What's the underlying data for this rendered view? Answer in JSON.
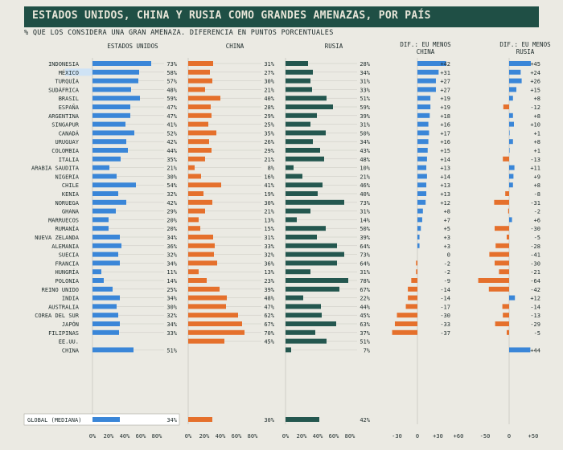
{
  "title": "ESTADOS UNIDOS, CHINA Y RUSIA COMO GRANDES AMENAZAS, POR PAÍS",
  "subtitle": "% QUE LOS CONSIDERA UNA GRAN AMENAZA. DIFERENCIA EN PUNTOS PORCENTUALES",
  "colors": {
    "us": "#3a86d8",
    "china": "#e5702c",
    "russia": "#24574f",
    "diff_neg": "#e5702c",
    "background": "#ebeae3",
    "title_bg": "#1f4f45",
    "highlight": "#cfe3f5"
  },
  "chart_data": {
    "type": "bar",
    "panels": [
      {
        "key": "us",
        "title": "ESTADOS UNIDOS",
        "xlim": [
          0,
          100
        ],
        "ticks": [
          "0%",
          "20%",
          "40%",
          "60%",
          "80%"
        ]
      },
      {
        "key": "china",
        "title": "CHINA",
        "xlim": [
          0,
          100
        ],
        "ticks": [
          "0%",
          "20%",
          "40%",
          "60%",
          "80%"
        ]
      },
      {
        "key": "russia",
        "title": "RUSIA",
        "xlim": [
          0,
          100
        ],
        "ticks": [
          "0%",
          "20%",
          "40%",
          "60%",
          "80%"
        ]
      },
      {
        "key": "diff_china",
        "title": "DIF.: EU MENOS CHINA",
        "xlim": [
          -50,
          70
        ],
        "ticks": [
          "-30",
          "0",
          "+30",
          "+60"
        ]
      },
      {
        "key": "diff_russia",
        "title": "DIF.: EU MENOS RUSIA",
        "xlim": [
          -80,
          70
        ],
        "ticks": [
          "-50",
          "0",
          "+50"
        ]
      }
    ],
    "highlighted_country": "MÉXICO",
    "rows": [
      {
        "country": "INDONESIA",
        "us": 73,
        "china": 31,
        "russia": 28,
        "diff_china": "+42",
        "diff_russia": "+45"
      },
      {
        "country": "MÉXICO",
        "us": 58,
        "china": 27,
        "russia": 34,
        "diff_china": "+31",
        "diff_russia": "+24"
      },
      {
        "country": "TURQUÍA",
        "us": 57,
        "china": 30,
        "russia": 31,
        "diff_china": "+27",
        "diff_russia": "+26"
      },
      {
        "country": "SUDÁFRICA",
        "us": 48,
        "china": 21,
        "russia": 33,
        "diff_china": "+27",
        "diff_russia": "+15"
      },
      {
        "country": "BRASIL",
        "us": 59,
        "china": 40,
        "russia": 51,
        "diff_china": "+19",
        "diff_russia": "+8"
      },
      {
        "country": "ESPAÑA",
        "us": 47,
        "china": 28,
        "russia": 59,
        "diff_china": "+19",
        "diff_russia": "-12"
      },
      {
        "country": "ARGENTINA",
        "us": 47,
        "china": 29,
        "russia": 39,
        "diff_china": "+18",
        "diff_russia": "+8"
      },
      {
        "country": "SINGAPUR",
        "us": 41,
        "china": 25,
        "russia": 31,
        "diff_china": "+16",
        "diff_russia": "+10"
      },
      {
        "country": "CANADÁ",
        "us": 52,
        "china": 35,
        "russia": 50,
        "diff_china": "+17",
        "diff_russia": "+1"
      },
      {
        "country": "URUGUAY",
        "us": 42,
        "china": 26,
        "russia": 34,
        "diff_china": "+16",
        "diff_russia": "+8"
      },
      {
        "country": "COLOMBIA",
        "us": 44,
        "china": 29,
        "russia": 43,
        "diff_china": "+15",
        "diff_russia": "+1"
      },
      {
        "country": "ITALIA",
        "us": 35,
        "china": 21,
        "russia": 48,
        "diff_china": "+14",
        "diff_russia": "-13"
      },
      {
        "country": "ARABIA SAUDITA",
        "us": 21,
        "china": 8,
        "russia": 10,
        "diff_china": "+13",
        "diff_russia": "+11"
      },
      {
        "country": "NIGERIA",
        "us": 30,
        "china": 16,
        "russia": 21,
        "diff_china": "+14",
        "diff_russia": "+9"
      },
      {
        "country": "CHILE",
        "us": 54,
        "china": 41,
        "russia": 46,
        "diff_china": "+13",
        "diff_russia": "+8"
      },
      {
        "country": "KENIA",
        "us": 32,
        "china": 19,
        "russia": 40,
        "diff_china": "+13",
        "diff_russia": "-8"
      },
      {
        "country": "NORUEGA",
        "us": 42,
        "china": 30,
        "russia": 73,
        "diff_china": "+12",
        "diff_russia": "-31"
      },
      {
        "country": "GHANA",
        "us": 29,
        "china": 21,
        "russia": 31,
        "diff_china": "+8",
        "diff_russia": "-2"
      },
      {
        "country": "MARRUECOS",
        "us": 20,
        "china": 13,
        "russia": 14,
        "diff_china": "+7",
        "diff_russia": "+6"
      },
      {
        "country": "RUMANÍA",
        "us": 20,
        "china": 15,
        "russia": 50,
        "diff_china": "+5",
        "diff_russia": "-30"
      },
      {
        "country": "NUEVA ZELANDA",
        "us": 34,
        "china": 31,
        "russia": 39,
        "diff_china": "+3",
        "diff_russia": "-5"
      },
      {
        "country": "ALEMANIA",
        "us": 36,
        "china": 33,
        "russia": 64,
        "diff_china": "+3",
        "diff_russia": "-28"
      },
      {
        "country": "SUECIA",
        "us": 32,
        "china": 32,
        "russia": 73,
        "diff_china": "0",
        "diff_russia": "-41"
      },
      {
        "country": "FRANCIA",
        "us": 34,
        "china": 36,
        "russia": 64,
        "diff_china": "-2",
        "diff_russia": "-30"
      },
      {
        "country": "HUNGRÍA",
        "us": 11,
        "china": 13,
        "russia": 31,
        "diff_china": "-2",
        "diff_russia": "-21"
      },
      {
        "country": "POLONIA",
        "us": 14,
        "china": 23,
        "russia": 78,
        "diff_china": "-9",
        "diff_russia": "-64"
      },
      {
        "country": "REINO UNIDO",
        "us": 25,
        "china": 39,
        "russia": 67,
        "diff_china": "-14",
        "diff_russia": "-42"
      },
      {
        "country": "INDIA",
        "us": 34,
        "china": 48,
        "russia": 22,
        "diff_china": "-14",
        "diff_russia": "+12"
      },
      {
        "country": "AUSTRALIA",
        "us": 30,
        "china": 47,
        "russia": 44,
        "diff_china": "-17",
        "diff_russia": "-14"
      },
      {
        "country": "COREA DEL SUR",
        "us": 32,
        "china": 62,
        "russia": 45,
        "diff_china": "-30",
        "diff_russia": "-13"
      },
      {
        "country": "JAPÓN",
        "us": 34,
        "china": 67,
        "russia": 63,
        "diff_china": "-33",
        "diff_russia": "-29"
      },
      {
        "country": "FILIPINAS",
        "us": 33,
        "china": 70,
        "russia": 37,
        "diff_china": "-37",
        "diff_russia": "-5"
      },
      {
        "country": "EE.UU.",
        "us": null,
        "china": 45,
        "russia": 51,
        "diff_china": null,
        "diff_russia": null
      },
      {
        "country": "CHINA",
        "us": 51,
        "china": null,
        "russia": 7,
        "diff_china": null,
        "diff_russia": "+44"
      }
    ],
    "global": {
      "country": "GLOBAL (MEDIANA)",
      "us": 34,
      "china": 30,
      "russia": 42
    }
  }
}
